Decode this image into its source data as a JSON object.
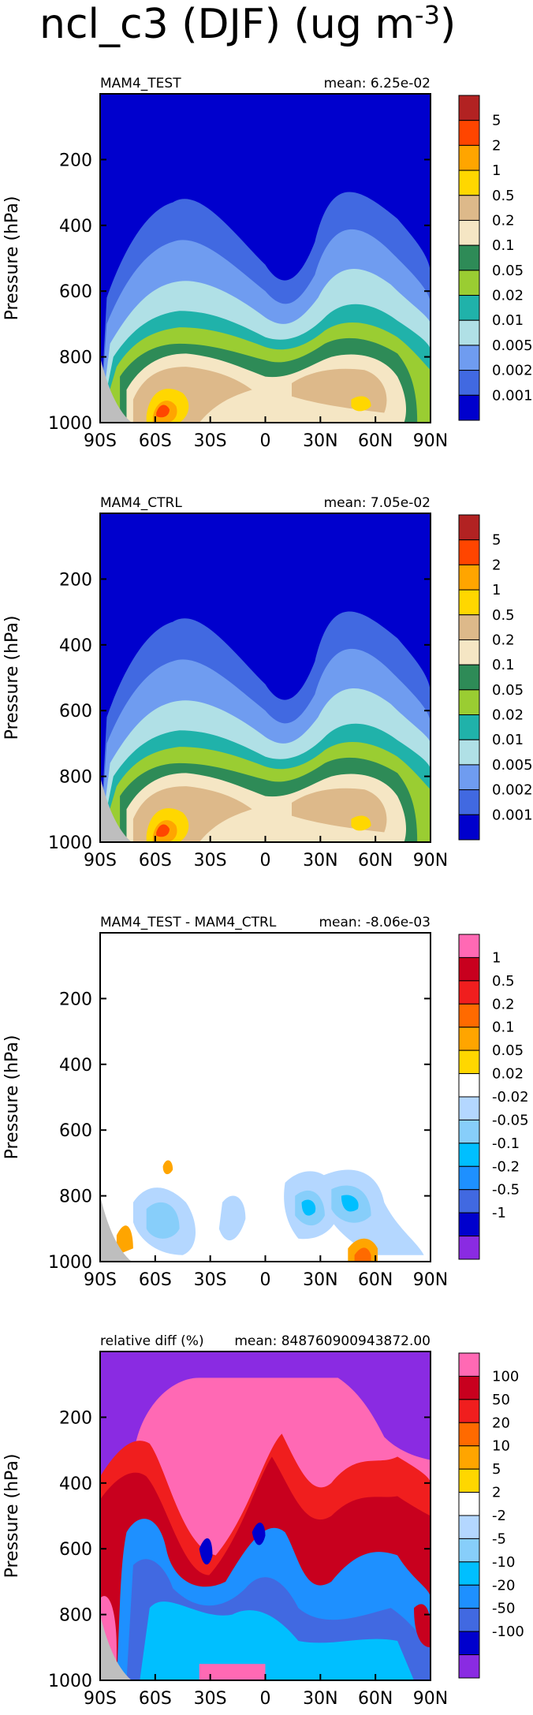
{
  "page_title": "ncl_c3 (DJF) (ug m",
  "page_title_sup": "-3",
  "page_title_end": ")",
  "chart_data": [
    {
      "type": "heatmap",
      "title_left": "MAM4_TEST",
      "title_right": "mean: 6.25e-02",
      "ylabel": "Pressure (hPa)",
      "xticks": [
        "90S",
        "60S",
        "30S",
        "0",
        "30N",
        "60N",
        "90N"
      ],
      "yticks": [
        "200",
        "400",
        "600",
        "800",
        "1000"
      ],
      "ylim": [
        0,
        1000
      ],
      "xlim": [
        -90,
        90
      ],
      "levels": [
        "5",
        "2",
        "1",
        "0.5",
        "0.2",
        "0.1",
        "0.05",
        "0.02",
        "0.01",
        "0.005",
        "0.002",
        "0.001"
      ],
      "colors": [
        "#b22222",
        "#ff4500",
        "#ffa500",
        "#ffd700",
        "#ddb98a",
        "#f5e6c4",
        "#2e8b57",
        "#9acd32",
        "#20b2aa",
        "#b0e0e6",
        "#6f9cf0",
        "#4169e1",
        "#0000cd"
      ],
      "background": "#0000cd"
    },
    {
      "type": "heatmap",
      "title_left": "MAM4_CTRL",
      "title_right": "mean: 7.05e-02",
      "ylabel": "Pressure (hPa)",
      "xticks": [
        "90S",
        "60S",
        "30S",
        "0",
        "30N",
        "60N",
        "90N"
      ],
      "yticks": [
        "200",
        "400",
        "600",
        "800",
        "1000"
      ],
      "ylim": [
        0,
        1000
      ],
      "xlim": [
        -90,
        90
      ],
      "levels": [
        "5",
        "2",
        "1",
        "0.5",
        "0.2",
        "0.1",
        "0.05",
        "0.02",
        "0.01",
        "0.005",
        "0.002",
        "0.001"
      ],
      "colors": [
        "#b22222",
        "#ff4500",
        "#ffa500",
        "#ffd700",
        "#ddb98a",
        "#f5e6c4",
        "#2e8b57",
        "#9acd32",
        "#20b2aa",
        "#b0e0e6",
        "#6f9cf0",
        "#4169e1",
        "#0000cd"
      ],
      "background": "#0000cd"
    },
    {
      "type": "heatmap",
      "title_left": "MAM4_TEST - MAM4_CTRL",
      "title_right": "mean: -8.06e-03",
      "ylabel": "Pressure (hPa)",
      "xticks": [
        "90S",
        "60S",
        "30S",
        "0",
        "30N",
        "60N",
        "90N"
      ],
      "yticks": [
        "200",
        "400",
        "600",
        "800",
        "1000"
      ],
      "ylim": [
        0,
        1000
      ],
      "xlim": [
        -90,
        90
      ],
      "levels": [
        "1",
        "0.5",
        "0.2",
        "0.1",
        "0.05",
        "0.02",
        "-0.02",
        "-0.05",
        "-0.1",
        "-0.2",
        "-0.5",
        "-1"
      ],
      "colors": [
        "#ff69b4",
        "#c8001e",
        "#f01e1e",
        "#ff6a00",
        "#ffa500",
        "#ffd700",
        "#ffffff",
        "#b4d7ff",
        "#87cefa",
        "#00bfff",
        "#1e90ff",
        "#4169e1",
        "#0000cd",
        "#8a2be2"
      ],
      "background": "#ffffff"
    },
    {
      "type": "heatmap",
      "title_left": "relative diff (%)",
      "title_right": "mean: 848760900943872.00",
      "ylabel": "Pressure (hPa)",
      "xticks": [
        "90S",
        "60S",
        "30S",
        "0",
        "30N",
        "60N",
        "90N"
      ],
      "yticks": [
        "200",
        "400",
        "600",
        "800",
        "1000"
      ],
      "ylim": [
        0,
        1000
      ],
      "xlim": [
        -90,
        90
      ],
      "levels": [
        "100",
        "50",
        "20",
        "10",
        "5",
        "2",
        "-2",
        "-5",
        "-10",
        "-20",
        "-50",
        "-100"
      ],
      "colors": [
        "#ff69b4",
        "#c8001e",
        "#f01e1e",
        "#ff6a00",
        "#ffa500",
        "#ffd700",
        "#ffffff",
        "#b4d7ff",
        "#87cefa",
        "#00bfff",
        "#1e90ff",
        "#4169e1",
        "#0000cd",
        "#8a2be2"
      ],
      "background": "#bebebe"
    }
  ]
}
